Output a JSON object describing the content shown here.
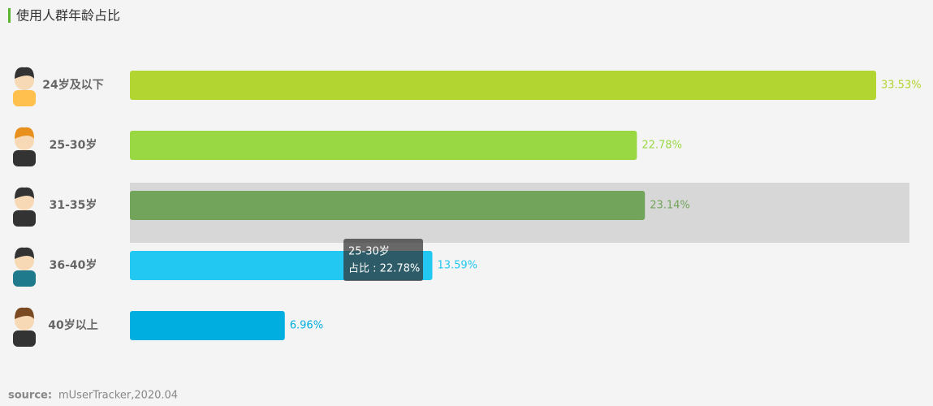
{
  "chart_data": {
    "type": "bar",
    "orientation": "horizontal",
    "title": "使用人群年龄占比",
    "categories": [
      "24岁及以下",
      "25-30岁",
      "31-35岁",
      "36-40岁",
      "40岁以上"
    ],
    "values": [
      33.53,
      22.78,
      23.14,
      13.59,
      6.96
    ],
    "value_labels": [
      "33.53%",
      "22.78%",
      "23.14%",
      "13.59%",
      "6.96%"
    ],
    "colors": [
      "#b3d531",
      "#99d843",
      "#72a55b",
      "#22c8f2",
      "#00aee0"
    ],
    "tooltip": {
      "title": "25-30岁",
      "text": "占比 : 22.78%"
    },
    "source_label": "source:",
    "source": "mUserTracker,2020.04"
  }
}
